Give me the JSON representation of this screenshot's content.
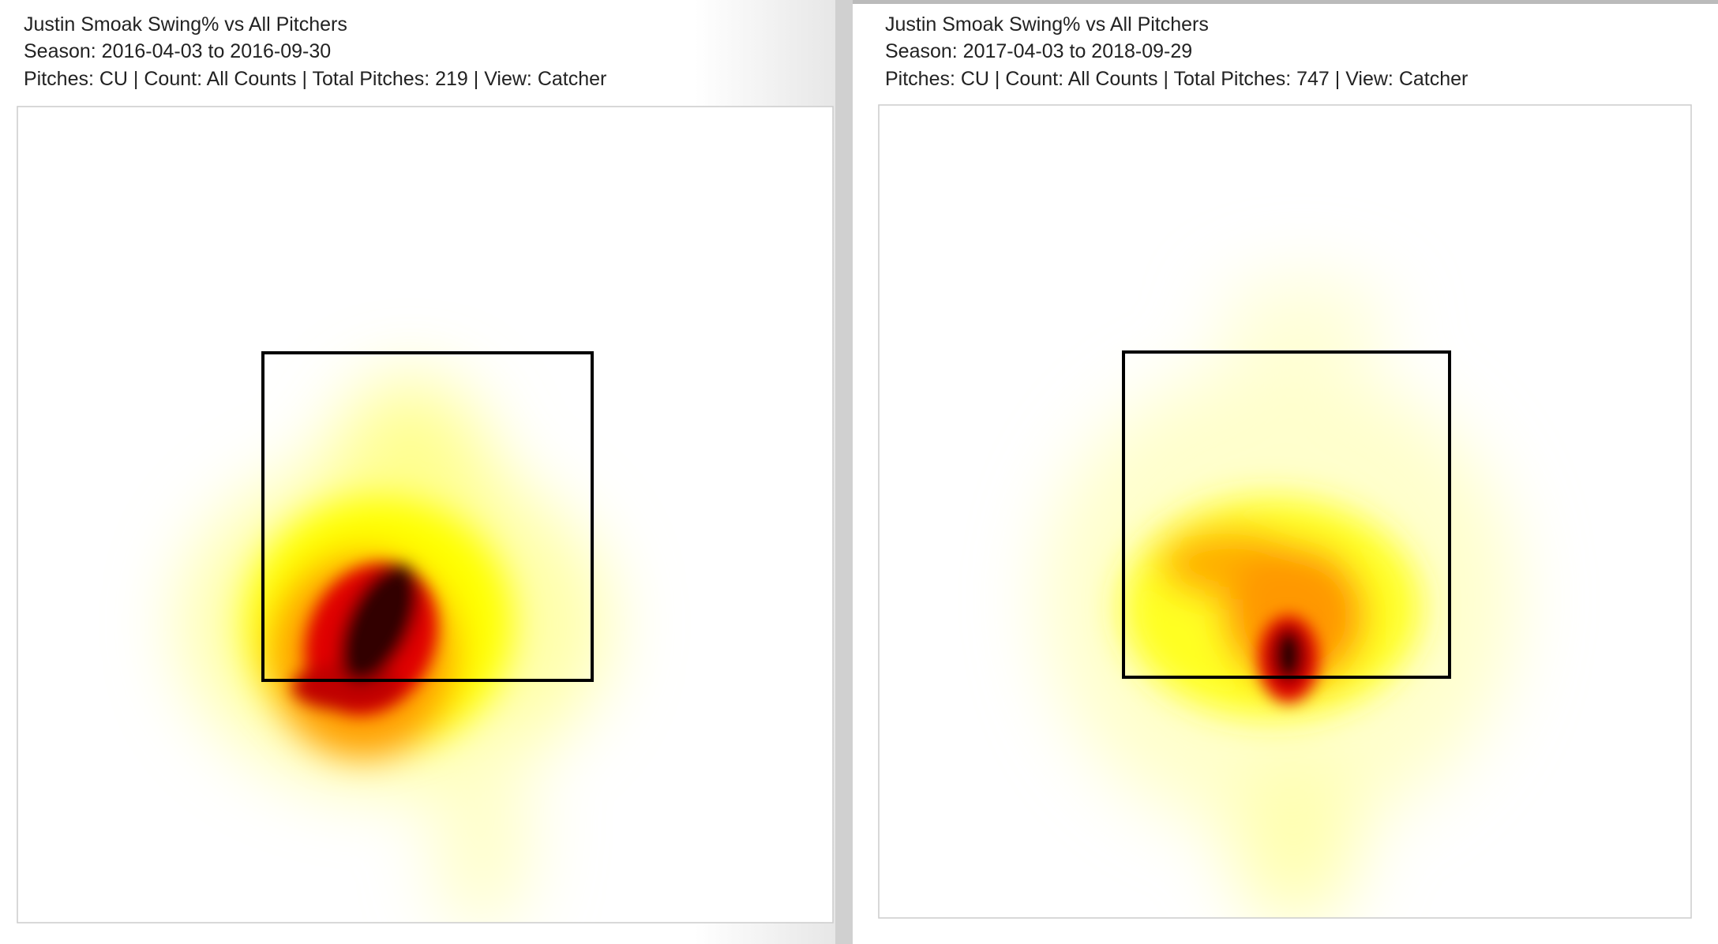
{
  "panels": [
    {
      "title": "Justin Smoak Swing% vs All Pitchers",
      "season": "Season: 2016-04-03 to 2016-09-30",
      "details": "Pitches: CU | Count: All Counts | Total Pitches: 219 | View: Catcher"
    },
    {
      "title": "Justin Smoak Swing% vs All Pitchers",
      "season": "Season: 2017-04-03 to 2018-09-29",
      "details": "Pitches: CU | Count: All Counts | Total Pitches: 747 | View: Catcher"
    }
  ]
}
